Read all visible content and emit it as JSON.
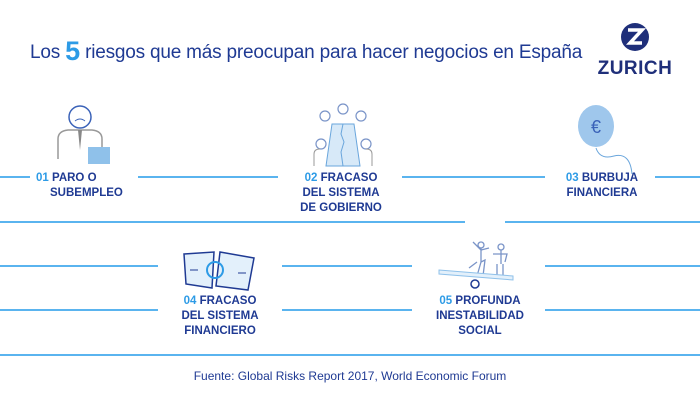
{
  "title": {
    "prefix": "Los",
    "number": "5",
    "suffix": "riesgos que más preocupan para hacer negocios en España"
  },
  "logo": {
    "text": "ZURICH"
  },
  "risks": [
    {
      "num": "01",
      "line1": "PARO O",
      "line2": "SUBEMPLEO",
      "line3": "",
      "icon": "unemployed-person-icon"
    },
    {
      "num": "02",
      "line1": "FRACASO",
      "line2": "DEL SISTEMA",
      "line3": "DE GOBIERNO",
      "icon": "broken-meeting-table-icon"
    },
    {
      "num": "03",
      "line1": "BURBUJA",
      "line2": "FINANCIERA",
      "line3": "",
      "icon": "euro-balloon-icon"
    },
    {
      "num": "04",
      "line1": "FRACASO",
      "line2": "DEL SISTEMA",
      "line3": "FINANCIERO",
      "icon": "torn-banknote-icon"
    },
    {
      "num": "05",
      "line1": "PROFUNDA",
      "line2": "INESTABILIDAD",
      "line3": "SOCIAL",
      "icon": "seesaw-people-icon"
    }
  ],
  "source": "Fuente: Global Risks Report 2017, World Economic Forum",
  "colors": {
    "navy": "#1f3a93",
    "accent": "#2d9be6",
    "line": "#5ab4ef"
  }
}
